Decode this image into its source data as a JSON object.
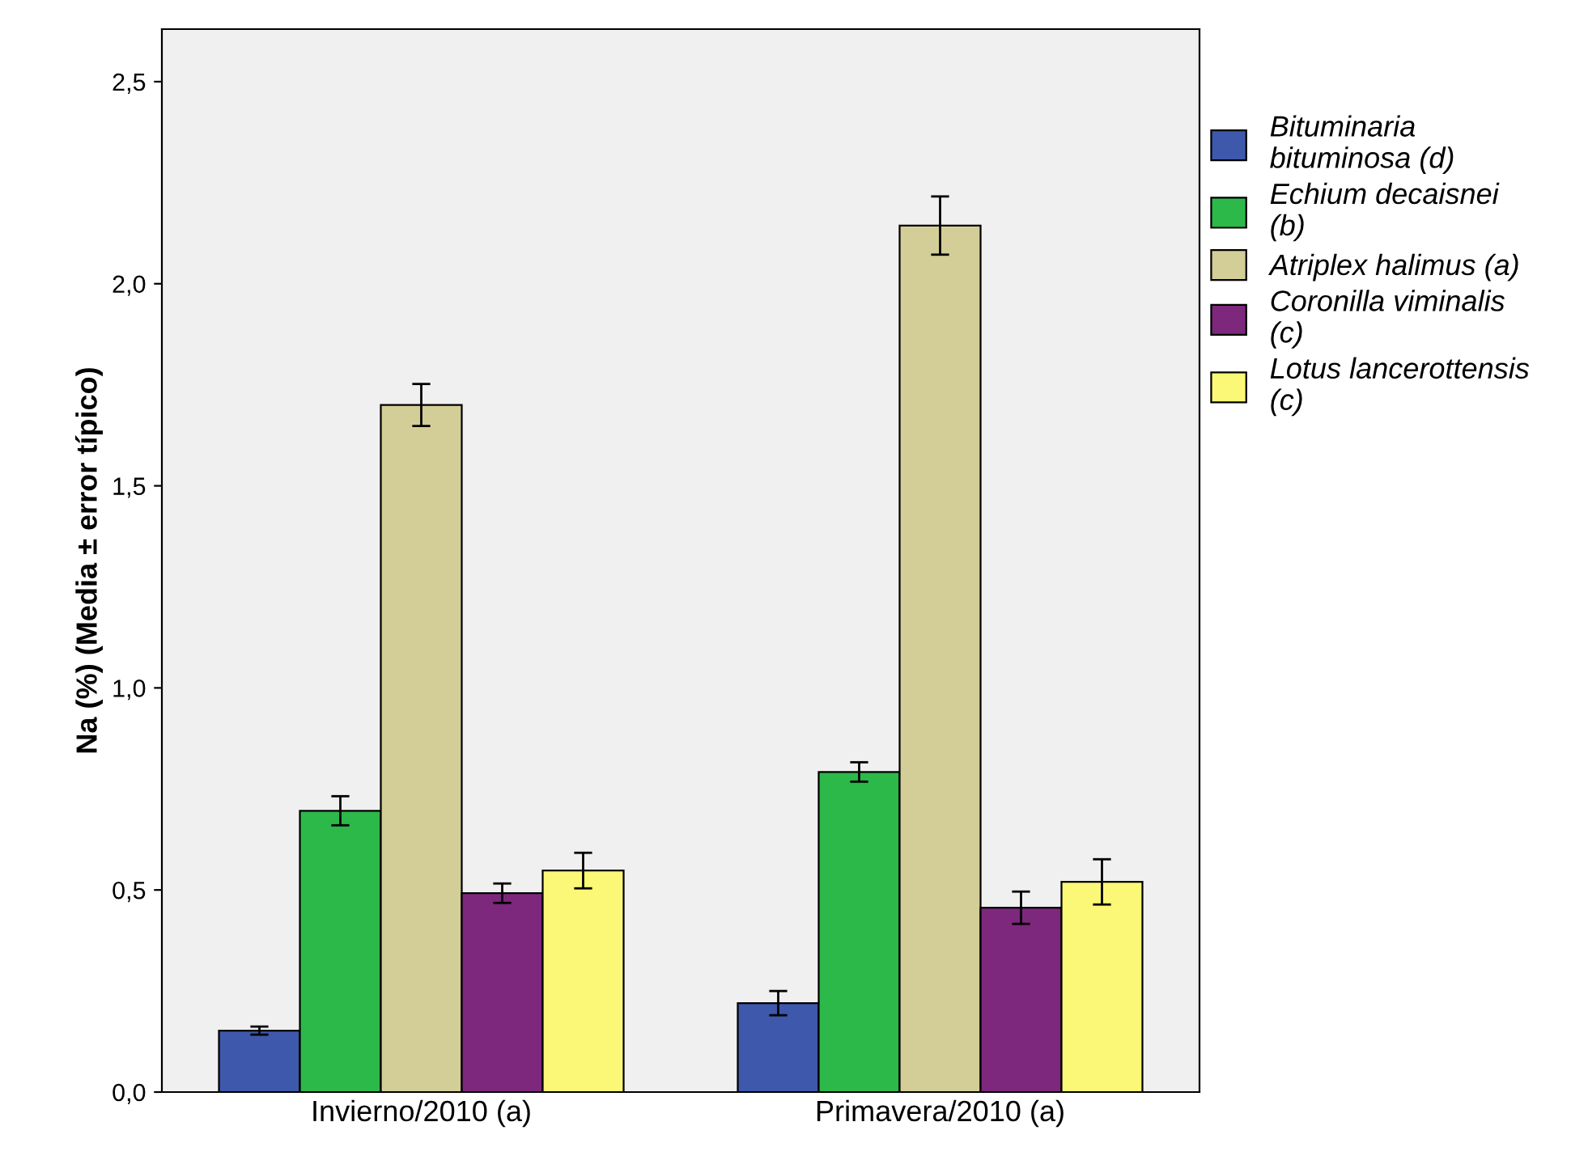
{
  "chart_data": {
    "type": "bar",
    "ylabel": "Na (%) (Media ± error típico)",
    "categories": [
      "Invierno/2010 (a)",
      "Primavera/2010 (a)"
    ],
    "series": [
      {
        "name": "Bituminaria\nbituminosa (d)",
        "color": "#3e58ac",
        "values": [
          0.152,
          0.22
        ],
        "errors": [
          0.01,
          0.03
        ]
      },
      {
        "name": "Echium decaisnei\n(b)",
        "color": "#2db84a",
        "values": [
          0.696,
          0.792
        ],
        "errors": [
          0.036,
          0.024
        ]
      },
      {
        "name": "Atriplex halimus (a)",
        "color": "#d3ce97",
        "values": [
          1.7,
          2.144
        ],
        "errors": [
          0.052,
          0.072
        ]
      },
      {
        "name": "Coronilla viminalis\n(c)",
        "color": "#7d287d",
        "values": [
          0.492,
          0.456
        ],
        "errors": [
          0.024,
          0.04
        ]
      },
      {
        "name": "Lotus lancerottensis\n(c)",
        "color": "#fbf877",
        "values": [
          0.548,
          0.52
        ],
        "errors": [
          0.044,
          0.056
        ]
      }
    ],
    "ylim": [
      0,
      2.63
    ],
    "yticks": [
      {
        "value": 0,
        "label": "0,0"
      },
      {
        "value": 0.5,
        "label": "0,5"
      },
      {
        "value": 1.0,
        "label": "1,0"
      },
      {
        "value": 1.5,
        "label": "1,5"
      },
      {
        "value": 2.0,
        "label": "2,0"
      },
      {
        "value": 2.5,
        "label": "2,5"
      }
    ],
    "legend": "right",
    "grid": false
  }
}
